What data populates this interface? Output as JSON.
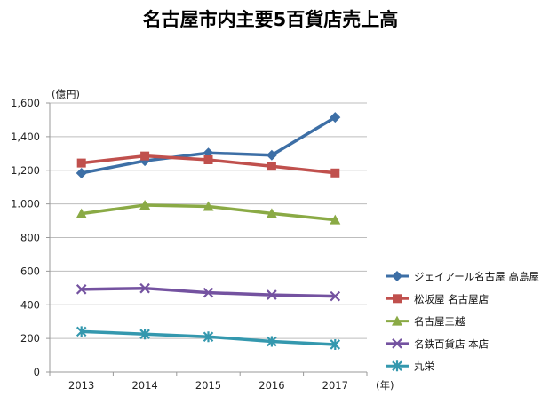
{
  "chart_data": {
    "type": "line",
    "title": "名古屋市内主要5百貨店売上高",
    "ylabel": "(億円)",
    "xlabel": "(年)",
    "categories": [
      "2013",
      "2014",
      "2015",
      "2016",
      "2017"
    ],
    "ylim": [
      0,
      1600
    ],
    "yticks": [
      0,
      200,
      400,
      600,
      800,
      1000,
      1200,
      1400,
      1600
    ],
    "ytick_labels": [
      "0",
      "200",
      "400",
      "600",
      "800",
      "1.000",
      "1,200",
      "1,400",
      "1,600"
    ],
    "grid": true,
    "legend": "right",
    "series": [
      {
        "name": "ジェイアール名古屋 高島屋",
        "color": "#3D6FA6",
        "marker": "diamond",
        "values": [
          1183,
          1256,
          1303,
          1290,
          1515
        ]
      },
      {
        "name": "松坂屋 名古屋店",
        "color": "#C0504D",
        "marker": "square",
        "values": [
          1243,
          1285,
          1262,
          1224,
          1184
        ]
      },
      {
        "name": "名古屋三越",
        "color": "#8AAA45",
        "marker": "triangle",
        "values": [
          942,
          993,
          985,
          943,
          905
        ]
      },
      {
        "name": "名鉄百貨店 本店",
        "color": "#7452A0",
        "marker": "x",
        "values": [
          492,
          498,
          472,
          459,
          451
        ]
      },
      {
        "name": "丸栄",
        "color": "#3498AE",
        "marker": "star",
        "values": [
          241,
          226,
          210,
          182,
          164
        ]
      }
    ]
  }
}
